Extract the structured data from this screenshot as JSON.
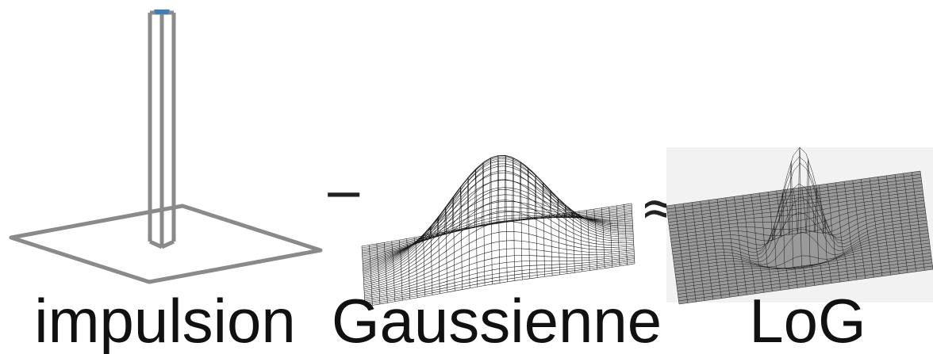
{
  "labels": {
    "impulse": "impulsion",
    "gaussian": "Gaussienne",
    "log": "LoG"
  },
  "operators": {
    "minus": "−",
    "approx": "≈"
  },
  "colors": {
    "impulse_frame": "#8a8a8a",
    "impulse_tip": "#3f7fb5",
    "mesh": "#111111",
    "log_background": "#f2f2f2",
    "log_surface": "#9a9a9a"
  },
  "icons": {
    "impulse": "impulse-3d-icon",
    "gaussian": "gaussian-mesh-icon",
    "log": "laplacian-of-gaussian-surface-icon"
  }
}
